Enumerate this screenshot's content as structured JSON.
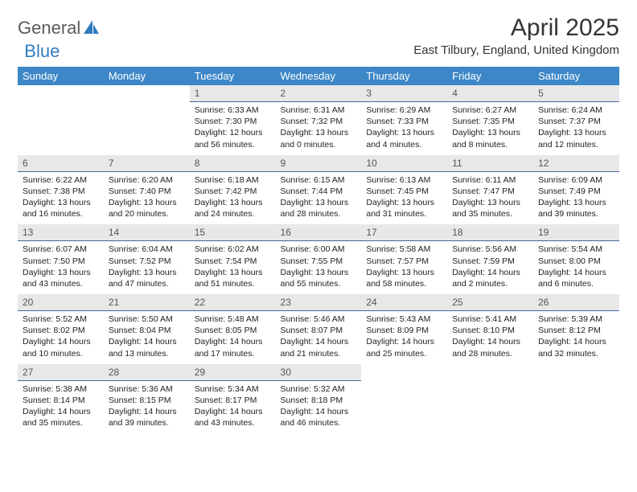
{
  "brand": {
    "text_gray": "General",
    "text_blue": "Blue",
    "shape_color": "#2f7bbf"
  },
  "title": "April 2025",
  "location": "East Tilbury, England, United Kingdom",
  "header_bg": "#3d87c7",
  "daynum_bg": "#e8e8e8",
  "border_color": "#3d6b9a",
  "weekdays": [
    "Sunday",
    "Monday",
    "Tuesday",
    "Wednesday",
    "Thursday",
    "Friday",
    "Saturday"
  ],
  "weeks": [
    [
      null,
      null,
      {
        "n": "1",
        "sr": "Sunrise: 6:33 AM",
        "ss": "Sunset: 7:30 PM",
        "dl": "Daylight: 12 hours and 56 minutes."
      },
      {
        "n": "2",
        "sr": "Sunrise: 6:31 AM",
        "ss": "Sunset: 7:32 PM",
        "dl": "Daylight: 13 hours and 0 minutes."
      },
      {
        "n": "3",
        "sr": "Sunrise: 6:29 AM",
        "ss": "Sunset: 7:33 PM",
        "dl": "Daylight: 13 hours and 4 minutes."
      },
      {
        "n": "4",
        "sr": "Sunrise: 6:27 AM",
        "ss": "Sunset: 7:35 PM",
        "dl": "Daylight: 13 hours and 8 minutes."
      },
      {
        "n": "5",
        "sr": "Sunrise: 6:24 AM",
        "ss": "Sunset: 7:37 PM",
        "dl": "Daylight: 13 hours and 12 minutes."
      }
    ],
    [
      {
        "n": "6",
        "sr": "Sunrise: 6:22 AM",
        "ss": "Sunset: 7:38 PM",
        "dl": "Daylight: 13 hours and 16 minutes."
      },
      {
        "n": "7",
        "sr": "Sunrise: 6:20 AM",
        "ss": "Sunset: 7:40 PM",
        "dl": "Daylight: 13 hours and 20 minutes."
      },
      {
        "n": "8",
        "sr": "Sunrise: 6:18 AM",
        "ss": "Sunset: 7:42 PM",
        "dl": "Daylight: 13 hours and 24 minutes."
      },
      {
        "n": "9",
        "sr": "Sunrise: 6:15 AM",
        "ss": "Sunset: 7:44 PM",
        "dl": "Daylight: 13 hours and 28 minutes."
      },
      {
        "n": "10",
        "sr": "Sunrise: 6:13 AM",
        "ss": "Sunset: 7:45 PM",
        "dl": "Daylight: 13 hours and 31 minutes."
      },
      {
        "n": "11",
        "sr": "Sunrise: 6:11 AM",
        "ss": "Sunset: 7:47 PM",
        "dl": "Daylight: 13 hours and 35 minutes."
      },
      {
        "n": "12",
        "sr": "Sunrise: 6:09 AM",
        "ss": "Sunset: 7:49 PM",
        "dl": "Daylight: 13 hours and 39 minutes."
      }
    ],
    [
      {
        "n": "13",
        "sr": "Sunrise: 6:07 AM",
        "ss": "Sunset: 7:50 PM",
        "dl": "Daylight: 13 hours and 43 minutes."
      },
      {
        "n": "14",
        "sr": "Sunrise: 6:04 AM",
        "ss": "Sunset: 7:52 PM",
        "dl": "Daylight: 13 hours and 47 minutes."
      },
      {
        "n": "15",
        "sr": "Sunrise: 6:02 AM",
        "ss": "Sunset: 7:54 PM",
        "dl": "Daylight: 13 hours and 51 minutes."
      },
      {
        "n": "16",
        "sr": "Sunrise: 6:00 AM",
        "ss": "Sunset: 7:55 PM",
        "dl": "Daylight: 13 hours and 55 minutes."
      },
      {
        "n": "17",
        "sr": "Sunrise: 5:58 AM",
        "ss": "Sunset: 7:57 PM",
        "dl": "Daylight: 13 hours and 58 minutes."
      },
      {
        "n": "18",
        "sr": "Sunrise: 5:56 AM",
        "ss": "Sunset: 7:59 PM",
        "dl": "Daylight: 14 hours and 2 minutes."
      },
      {
        "n": "19",
        "sr": "Sunrise: 5:54 AM",
        "ss": "Sunset: 8:00 PM",
        "dl": "Daylight: 14 hours and 6 minutes."
      }
    ],
    [
      {
        "n": "20",
        "sr": "Sunrise: 5:52 AM",
        "ss": "Sunset: 8:02 PM",
        "dl": "Daylight: 14 hours and 10 minutes."
      },
      {
        "n": "21",
        "sr": "Sunrise: 5:50 AM",
        "ss": "Sunset: 8:04 PM",
        "dl": "Daylight: 14 hours and 13 minutes."
      },
      {
        "n": "22",
        "sr": "Sunrise: 5:48 AM",
        "ss": "Sunset: 8:05 PM",
        "dl": "Daylight: 14 hours and 17 minutes."
      },
      {
        "n": "23",
        "sr": "Sunrise: 5:46 AM",
        "ss": "Sunset: 8:07 PM",
        "dl": "Daylight: 14 hours and 21 minutes."
      },
      {
        "n": "24",
        "sr": "Sunrise: 5:43 AM",
        "ss": "Sunset: 8:09 PM",
        "dl": "Daylight: 14 hours and 25 minutes."
      },
      {
        "n": "25",
        "sr": "Sunrise: 5:41 AM",
        "ss": "Sunset: 8:10 PM",
        "dl": "Daylight: 14 hours and 28 minutes."
      },
      {
        "n": "26",
        "sr": "Sunrise: 5:39 AM",
        "ss": "Sunset: 8:12 PM",
        "dl": "Daylight: 14 hours and 32 minutes."
      }
    ],
    [
      {
        "n": "27",
        "sr": "Sunrise: 5:38 AM",
        "ss": "Sunset: 8:14 PM",
        "dl": "Daylight: 14 hours and 35 minutes."
      },
      {
        "n": "28",
        "sr": "Sunrise: 5:36 AM",
        "ss": "Sunset: 8:15 PM",
        "dl": "Daylight: 14 hours and 39 minutes."
      },
      {
        "n": "29",
        "sr": "Sunrise: 5:34 AM",
        "ss": "Sunset: 8:17 PM",
        "dl": "Daylight: 14 hours and 43 minutes."
      },
      {
        "n": "30",
        "sr": "Sunrise: 5:32 AM",
        "ss": "Sunset: 8:18 PM",
        "dl": "Daylight: 14 hours and 46 minutes."
      },
      null,
      null,
      null
    ]
  ]
}
